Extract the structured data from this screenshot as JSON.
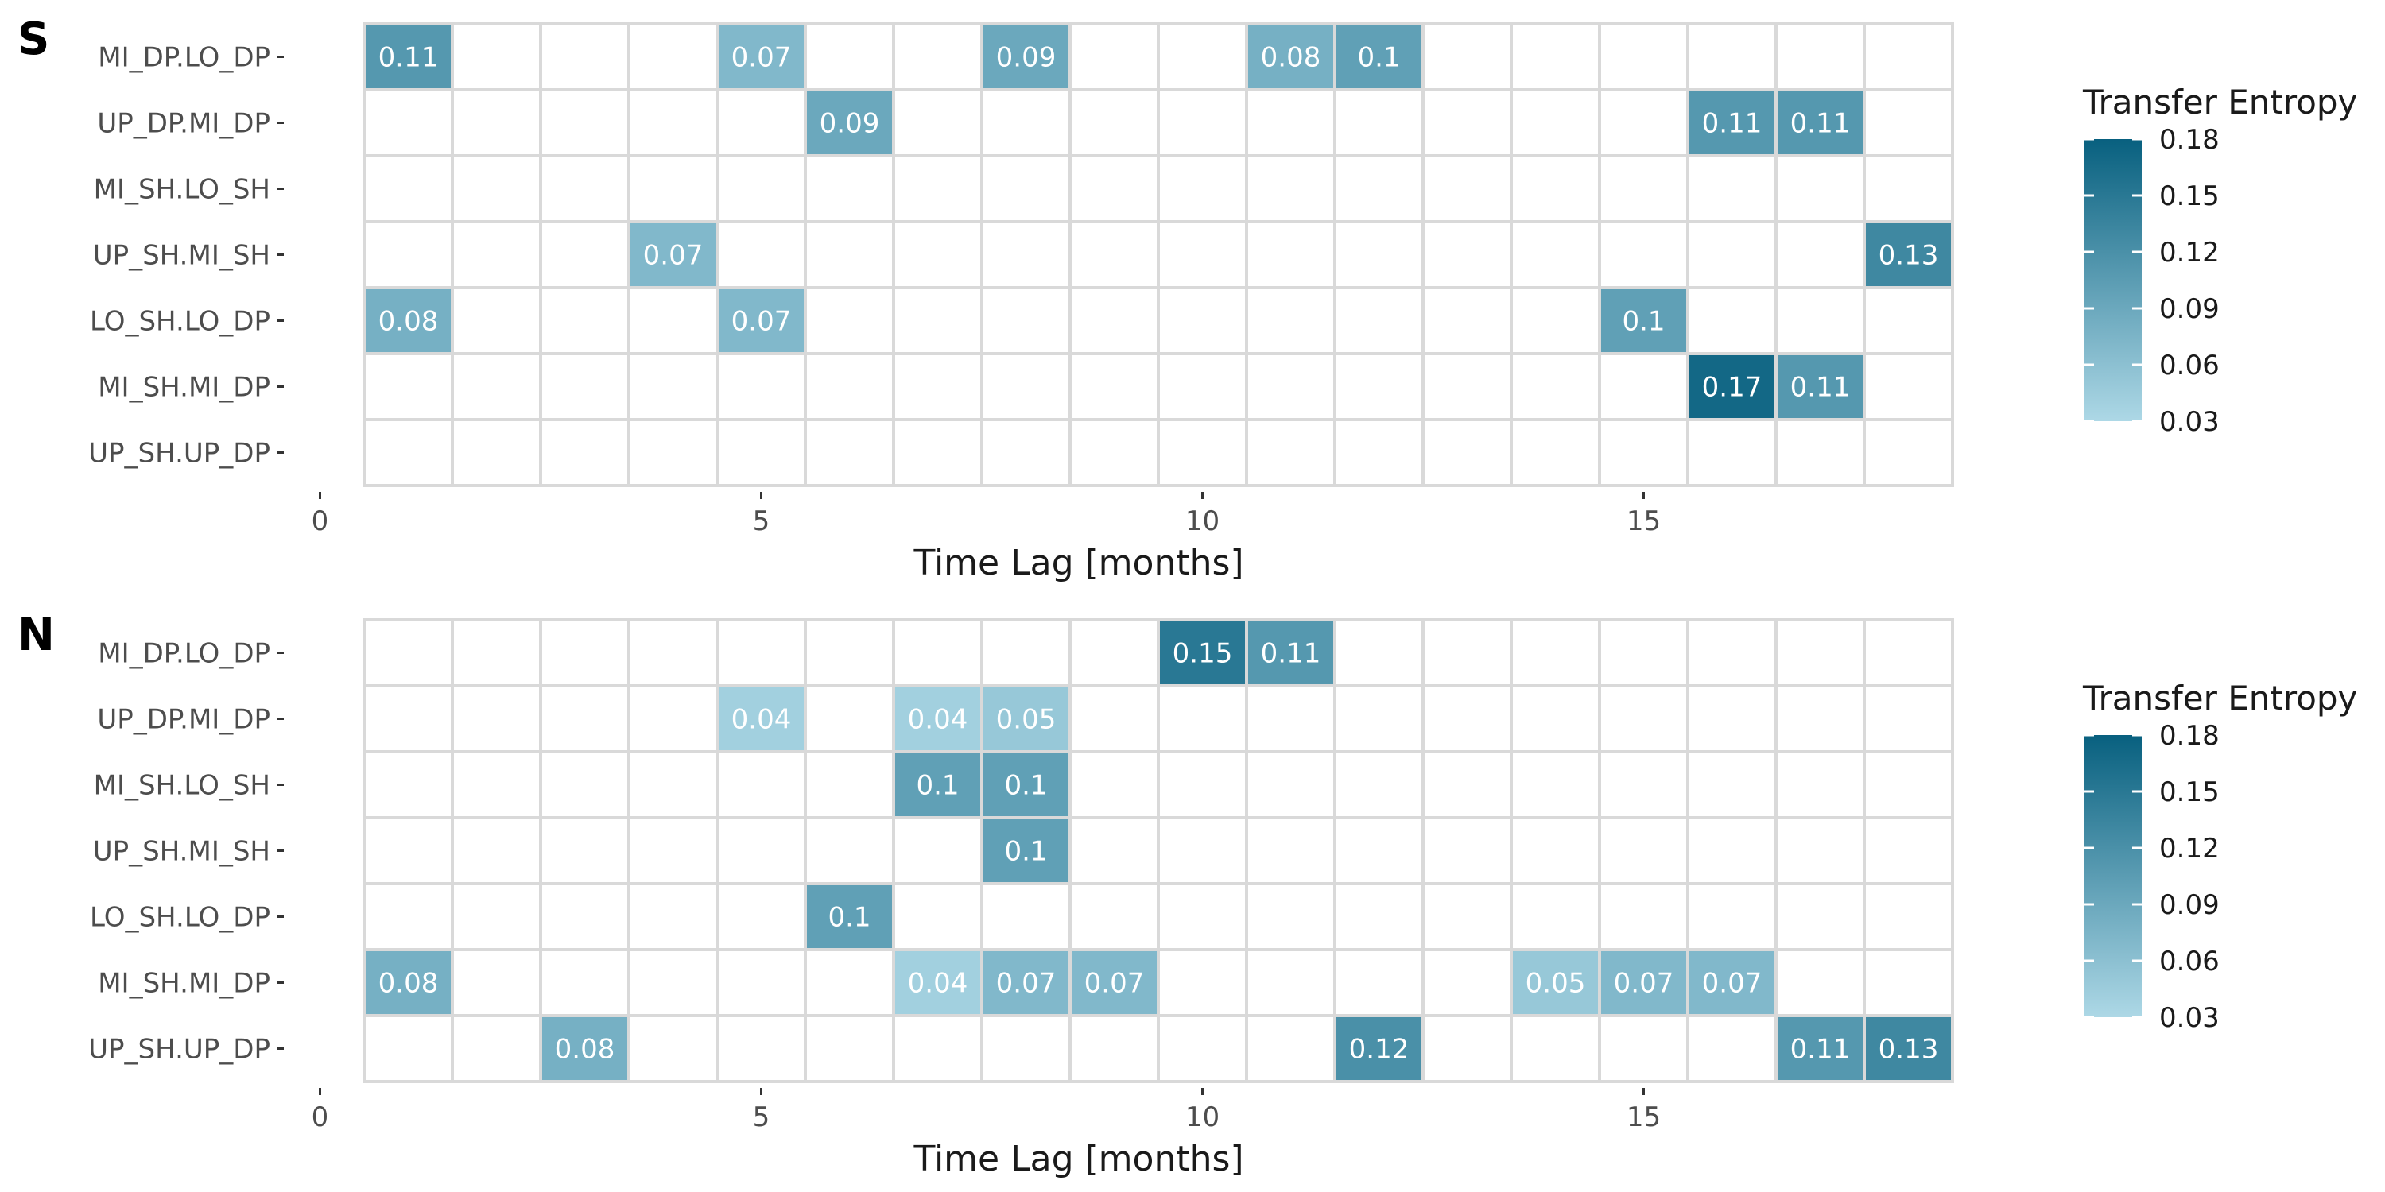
{
  "chart_data": [
    {
      "type": "heatmap",
      "panel_label": "S",
      "rows": [
        "MI_DP.LO_DP",
        "UP_DP.MI_DP",
        "MI_SH.LO_SH",
        "UP_SH.MI_SH",
        "LO_SH.LO_DP",
        "MI_SH.MI_DP",
        "UP_SH.UP_DP"
      ],
      "x_range": [
        1,
        18
      ],
      "xlim": [
        0,
        18.5
      ],
      "xticks": [
        0,
        5,
        10,
        15
      ],
      "xlabel": "Time Lag [months]",
      "legend": {
        "title": "Transfer Entropy",
        "limits": [
          0.03,
          0.18
        ],
        "ticks": [
          "0.18",
          "0.15",
          "0.12",
          "0.09",
          "0.06",
          "0.03"
        ],
        "placement": "right"
      },
      "cells": [
        {
          "row": "MI_DP.LO_DP",
          "x": 1,
          "value": 0.11,
          "label": "0.11"
        },
        {
          "row": "MI_DP.LO_DP",
          "x": 5,
          "value": 0.07,
          "label": "0.07"
        },
        {
          "row": "MI_DP.LO_DP",
          "x": 8,
          "value": 0.09,
          "label": "0.09"
        },
        {
          "row": "MI_DP.LO_DP",
          "x": 11,
          "value": 0.08,
          "label": "0.08"
        },
        {
          "row": "MI_DP.LO_DP",
          "x": 12,
          "value": 0.1,
          "label": "0.1"
        },
        {
          "row": "UP_DP.MI_DP",
          "x": 6,
          "value": 0.09,
          "label": "0.09"
        },
        {
          "row": "UP_DP.MI_DP",
          "x": 16,
          "value": 0.11,
          "label": "0.11"
        },
        {
          "row": "UP_DP.MI_DP",
          "x": 17,
          "value": 0.11,
          "label": "0.11"
        },
        {
          "row": "UP_SH.MI_SH",
          "x": 4,
          "value": 0.07,
          "label": "0.07"
        },
        {
          "row": "UP_SH.MI_SH",
          "x": 18,
          "value": 0.13,
          "label": "0.13"
        },
        {
          "row": "LO_SH.LO_DP",
          "x": 1,
          "value": 0.08,
          "label": "0.08"
        },
        {
          "row": "LO_SH.LO_DP",
          "x": 5,
          "value": 0.07,
          "label": "0.07"
        },
        {
          "row": "LO_SH.LO_DP",
          "x": 15,
          "value": 0.1,
          "label": "0.1"
        },
        {
          "row": "MI_SH.MI_DP",
          "x": 16,
          "value": 0.17,
          "label": "0.17"
        },
        {
          "row": "MI_SH.MI_DP",
          "x": 17,
          "value": 0.11,
          "label": "0.11"
        }
      ],
      "colors": {
        "low": "#add8e6",
        "high": "#08607f",
        "grid_line": "#d9d9d9"
      }
    },
    {
      "type": "heatmap",
      "panel_label": "N",
      "rows": [
        "MI_DP.LO_DP",
        "UP_DP.MI_DP",
        "MI_SH.LO_SH",
        "UP_SH.MI_SH",
        "LO_SH.LO_DP",
        "MI_SH.MI_DP",
        "UP_SH.UP_DP"
      ],
      "x_range": [
        1,
        18
      ],
      "xlim": [
        0,
        18.5
      ],
      "xticks": [
        0,
        5,
        10,
        15
      ],
      "xlabel": "Time Lag [months]",
      "legend": {
        "title": "Transfer Entropy",
        "limits": [
          0.03,
          0.18
        ],
        "ticks": [
          "0.18",
          "0.15",
          "0.12",
          "0.09",
          "0.06",
          "0.03"
        ],
        "placement": "right"
      },
      "cells": [
        {
          "row": "MI_DP.LO_DP",
          "x": 10,
          "value": 0.15,
          "label": "0.15"
        },
        {
          "row": "MI_DP.LO_DP",
          "x": 11,
          "value": 0.11,
          "label": "0.11"
        },
        {
          "row": "UP_DP.MI_DP",
          "x": 5,
          "value": 0.04,
          "label": "0.04"
        },
        {
          "row": "UP_DP.MI_DP",
          "x": 7,
          "value": 0.04,
          "label": "0.04"
        },
        {
          "row": "UP_DP.MI_DP",
          "x": 8,
          "value": 0.05,
          "label": "0.05"
        },
        {
          "row": "MI_SH.LO_SH",
          "x": 7,
          "value": 0.1,
          "label": "0.1"
        },
        {
          "row": "MI_SH.LO_SH",
          "x": 8,
          "value": 0.1,
          "label": "0.1"
        },
        {
          "row": "UP_SH.MI_SH",
          "x": 8,
          "value": 0.1,
          "label": "0.1"
        },
        {
          "row": "LO_SH.LO_DP",
          "x": 6,
          "value": 0.1,
          "label": "0.1"
        },
        {
          "row": "MI_SH.MI_DP",
          "x": 1,
          "value": 0.08,
          "label": "0.08"
        },
        {
          "row": "MI_SH.MI_DP",
          "x": 7,
          "value": 0.04,
          "label": "0.04"
        },
        {
          "row": "MI_SH.MI_DP",
          "x": 8,
          "value": 0.07,
          "label": "0.07"
        },
        {
          "row": "MI_SH.MI_DP",
          "x": 9,
          "value": 0.07,
          "label": "0.07"
        },
        {
          "row": "MI_SH.MI_DP",
          "x": 14,
          "value": 0.05,
          "label": "0.05"
        },
        {
          "row": "MI_SH.MI_DP",
          "x": 15,
          "value": 0.07,
          "label": "0.07"
        },
        {
          "row": "MI_SH.MI_DP",
          "x": 16,
          "value": 0.07,
          "label": "0.07"
        },
        {
          "row": "UP_SH.UP_DP",
          "x": 3,
          "value": 0.08,
          "label": "0.08"
        },
        {
          "row": "UP_SH.UP_DP",
          "x": 12,
          "value": 0.12,
          "label": "0.12"
        },
        {
          "row": "UP_SH.UP_DP",
          "x": 17,
          "value": 0.11,
          "label": "0.11"
        },
        {
          "row": "UP_SH.UP_DP",
          "x": 18,
          "value": 0.13,
          "label": "0.13"
        }
      ],
      "colors": {
        "low": "#add8e6",
        "high": "#08607f",
        "grid_line": "#d9d9d9"
      }
    }
  ]
}
